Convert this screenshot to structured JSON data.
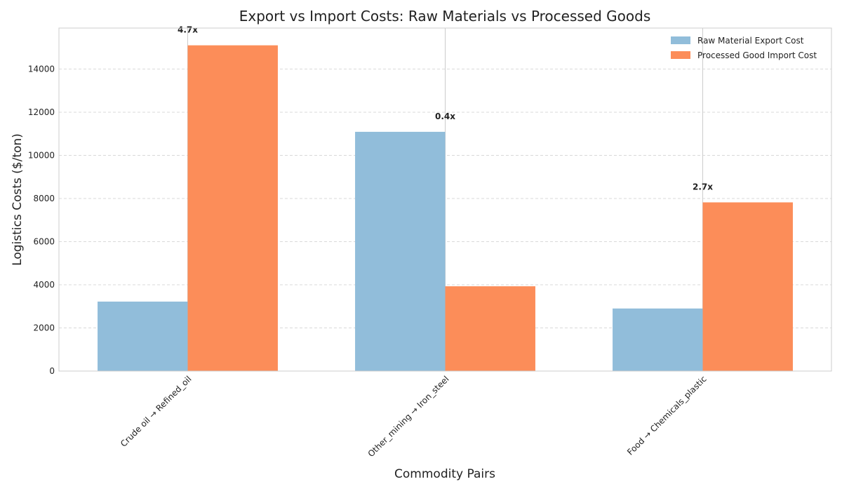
{
  "chart_data": {
    "type": "bar",
    "title": "Export vs Import Costs: Raw Materials vs Processed Goods",
    "xlabel": "Commodity Pairs",
    "ylabel": "Logistics Costs ($/ton)",
    "categories": [
      "Crude oil → Refined_oil",
      "Other_mining → Iron_steel",
      "Food → Chemicals_plastic"
    ],
    "series": [
      {
        "name": "Raw Material Export Cost",
        "color": "#91bdda",
        "values": [
          3220,
          11090,
          2900
        ]
      },
      {
        "name": "Processed Good Import Cost",
        "color": "#fc8d59",
        "values": [
          15100,
          3930,
          7820
        ]
      }
    ],
    "ratios": [
      "4.7x",
      "0.4x",
      "2.7x"
    ],
    "ylim": [
      0,
      15900
    ],
    "yticks": [
      0,
      2000,
      4000,
      6000,
      8000,
      10000,
      12000,
      14000
    ],
    "grid": "y-axis dashed",
    "legend_position": "top-right"
  }
}
